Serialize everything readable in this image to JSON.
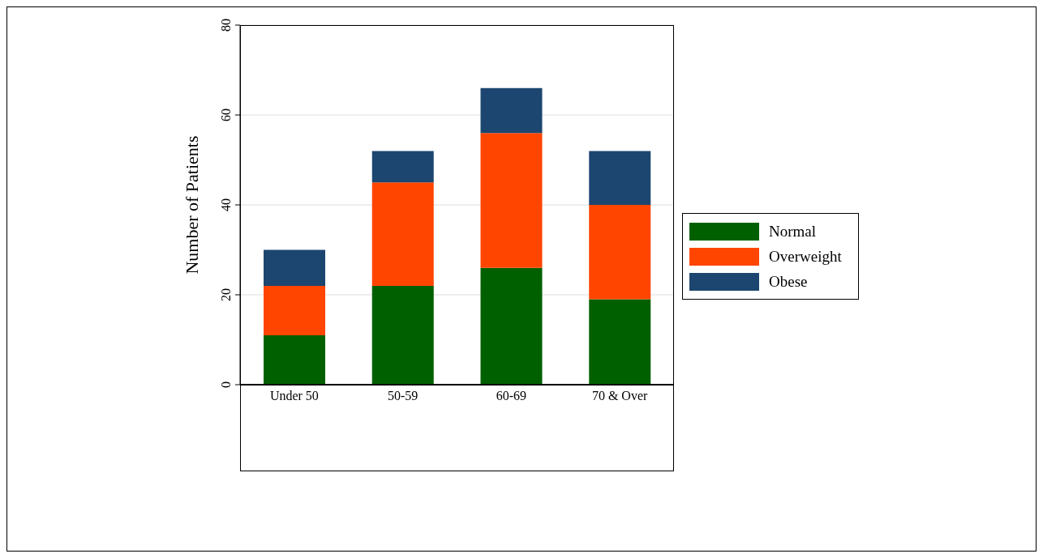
{
  "chart_data": {
    "type": "bar",
    "stacked": true,
    "ylabel": "Number of Patients",
    "categories": [
      "Under 50",
      "50-59",
      "60-69",
      "70 & Over"
    ],
    "series": [
      {
        "name": "Normal",
        "color": "#006000",
        "values": [
          11,
          22,
          26,
          19
        ]
      },
      {
        "name": "Overweight",
        "color": "#ff4500",
        "values": [
          11,
          23,
          30,
          21
        ]
      },
      {
        "name": "Obese",
        "color": "#1c4670",
        "values": [
          8,
          7,
          10,
          12
        ]
      }
    ],
    "ylim": [
      0,
      80
    ],
    "yticks": [
      0,
      20,
      40,
      60,
      80
    ],
    "grid": "y",
    "legend": "right"
  }
}
